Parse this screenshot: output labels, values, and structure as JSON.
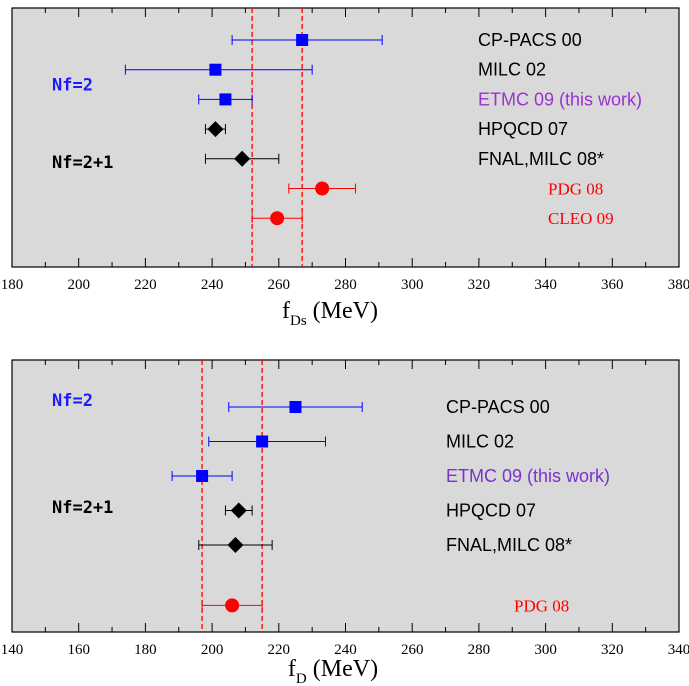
{
  "chart_data": [
    {
      "type": "scatter",
      "xlabel": "f",
      "xlabel_sub": "Ds",
      "xlabel_unit": "(MeV)",
      "xlim": [
        180,
        380
      ],
      "xticks": [
        180,
        200,
        220,
        240,
        260,
        280,
        300,
        320,
        340,
        360,
        380
      ],
      "background": "#d9d9d9",
      "reference_lines": [
        252,
        267
      ],
      "group_labels": [
        {
          "text": "Nf=2",
          "color": "#1a1aff",
          "row": 1.5
        },
        {
          "text": "Nf=2+1",
          "color": "#000000",
          "row": 4.1
        }
      ],
      "points": [
        {
          "label": "CP-PACS 00",
          "value": 267,
          "err_minus": 21,
          "err_plus": 24,
          "marker": "square",
          "color": "#0000ff",
          "label_color": "#000000",
          "label_font": "sans"
        },
        {
          "label": "MILC 02",
          "value": 241,
          "err_minus": 27,
          "err_plus": 29,
          "marker": "square",
          "color": "#0000ff",
          "label_color": "#000000",
          "label_font": "sans"
        },
        {
          "label": "ETMC 09 (this work)",
          "value": 244,
          "err_minus": 8,
          "err_plus": 8,
          "marker": "square",
          "color": "#0000ff",
          "label_color": "#9933cc",
          "label_font": "sans"
        },
        {
          "label": "HPQCD 07",
          "value": 241,
          "err_minus": 3,
          "err_plus": 3,
          "marker": "diamond",
          "color": "#000000",
          "label_color": "#000000",
          "label_font": "sans"
        },
        {
          "label": "FNAL,MILC 08*",
          "value": 249,
          "err_minus": 11,
          "err_plus": 11,
          "marker": "diamond",
          "color": "#000000",
          "label_color": "#000000",
          "label_font": "sans"
        },
        {
          "label": "PDG 08",
          "value": 273,
          "err_minus": 10,
          "err_plus": 10,
          "marker": "circle",
          "color": "#ff0000",
          "label_color": "#ff0000",
          "label_font": "serif"
        },
        {
          "label": "CLEO 09",
          "value": 259.5,
          "err_minus": 7.5,
          "err_plus": 7.5,
          "marker": "circle",
          "color": "#ff0000",
          "label_color": "#ff0000",
          "label_font": "serif"
        }
      ]
    },
    {
      "type": "scatter",
      "xlabel": "f",
      "xlabel_sub": "D",
      "xlabel_unit": "(MeV)",
      "xlim": [
        140,
        340
      ],
      "xticks": [
        140,
        160,
        180,
        200,
        220,
        240,
        260,
        280,
        300,
        320,
        340
      ],
      "background": "#d9d9d9",
      "reference_lines": [
        197,
        215
      ],
      "group_labels": [
        {
          "text": "Nf=2",
          "color": "#1a1aff",
          "row": -0.2
        },
        {
          "text": "Nf=2+1",
          "color": "#000000",
          "row": 2.9
        }
      ],
      "points": [
        {
          "label": "CP-PACS 00",
          "value": 225,
          "err_minus": 20,
          "err_plus": 20,
          "marker": "square",
          "color": "#0000ff",
          "label_color": "#000000",
          "label_font": "sans"
        },
        {
          "label": "MILC 02",
          "value": 215,
          "err_minus": 16,
          "err_plus": 19,
          "marker": "square",
          "color": "#0000ff",
          "label_color": "#000000",
          "label_font": "sans"
        },
        {
          "label": "ETMC 09 (this work)",
          "value": 197,
          "err_minus": 9,
          "err_plus": 9,
          "marker": "square",
          "color": "#0000ff",
          "label_color": "#7733cc",
          "label_font": "sans"
        },
        {
          "label": "HPQCD 07",
          "value": 208,
          "err_minus": 4,
          "err_plus": 4,
          "marker": "diamond",
          "color": "#000000",
          "label_color": "#000000",
          "label_font": "sans"
        },
        {
          "label": "FNAL,MILC 08*",
          "value": 207,
          "err_minus": 11,
          "err_plus": 11,
          "marker": "diamond",
          "color": "#000000",
          "label_color": "#000000",
          "label_font": "sans"
        },
        {
          "label": "PDG 08",
          "value": 206,
          "err_minus": 9,
          "err_plus": 9,
          "marker": "circle",
          "color": "#ff0000",
          "label_color": "#ff0000",
          "label_font": "serif",
          "row": 5.75
        }
      ]
    }
  ]
}
